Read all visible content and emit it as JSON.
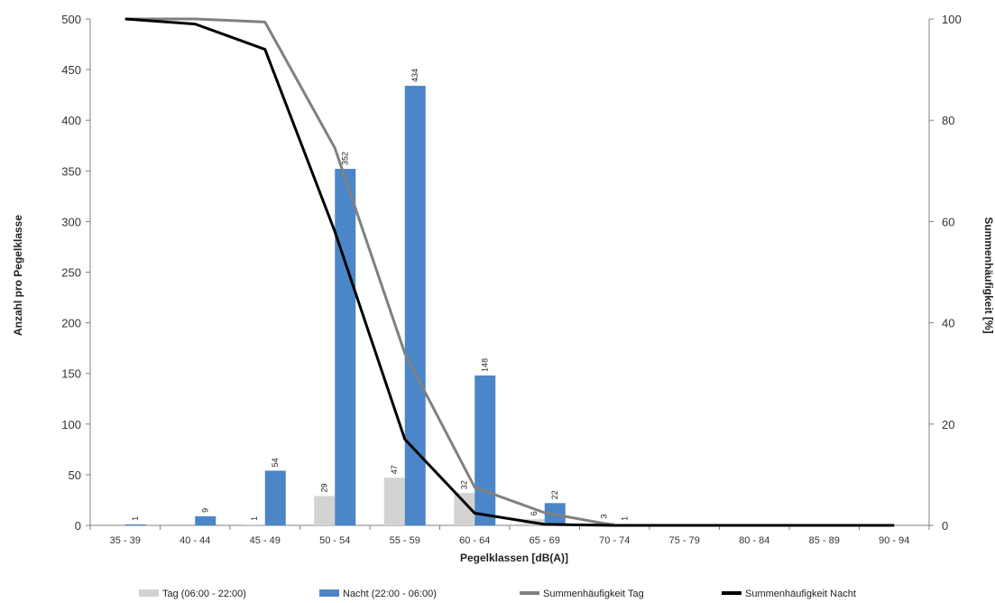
{
  "chart_data": {
    "type": "bar",
    "xlabel": "Pegelklassen [dB(A)]",
    "ylabel": "Anzahl pro Pegelklasse",
    "y2label": "Summenhäufigkeit [%]",
    "ylim": [
      0,
      500
    ],
    "y2lim": [
      0,
      100
    ],
    "yticks": [
      0,
      50,
      100,
      150,
      200,
      250,
      300,
      350,
      400,
      450,
      500
    ],
    "y2ticks": [
      0,
      20,
      40,
      60,
      80,
      100
    ],
    "categories": [
      "35 - 39",
      "40 - 44",
      "45 - 49",
      "50 - 54",
      "55 - 59",
      "60 - 64",
      "65 - 69",
      "70 - 74",
      "75 - 79",
      "80 - 84",
      "85 - 89",
      "90 - 94"
    ],
    "legend_position": "bottom",
    "series": [
      {
        "name": "Tag (06:00 - 22:00)",
        "kind": "bar",
        "axis": "left",
        "color": "#d3d3d3",
        "values": [
          0,
          0,
          1,
          29,
          47,
          32,
          6,
          3,
          0,
          0,
          0,
          0
        ],
        "labels": [
          null,
          null,
          "1",
          "29",
          "47",
          "32",
          "6",
          "3",
          null,
          null,
          null,
          null
        ]
      },
      {
        "name": "Nacht (22:00 - 06:00)",
        "kind": "bar",
        "axis": "left",
        "color": "#4a86c8",
        "values": [
          1,
          9,
          54,
          352,
          434,
          148,
          22,
          1,
          0,
          0,
          0,
          0
        ],
        "labels": [
          "1",
          "9",
          "54",
          "352",
          "434",
          "148",
          "22",
          "1",
          null,
          null,
          null,
          null
        ]
      },
      {
        "name": "Summenhäufigkeit Tag",
        "kind": "line",
        "axis": "right",
        "color": "#808080",
        "values": [
          100,
          100,
          99.4,
          74.5,
          34,
          7.5,
          2.5,
          0,
          0,
          0,
          0,
          0
        ]
      },
      {
        "name": "Summenhäufigkeit Nacht",
        "kind": "line",
        "axis": "right",
        "color": "#000000",
        "values": [
          100,
          99,
          94,
          58,
          17,
          2.4,
          0.2,
          0,
          0,
          0,
          0,
          0
        ]
      }
    ]
  }
}
